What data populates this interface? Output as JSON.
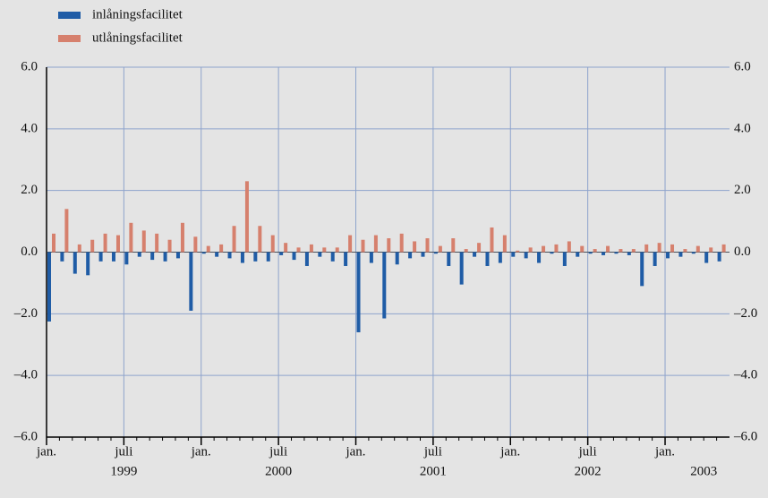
{
  "chart_data": {
    "type": "bar",
    "categories": [
      "jan.",
      null,
      null,
      null,
      null,
      null,
      "juli",
      null,
      null,
      null,
      null,
      null,
      "jan.",
      null,
      null,
      null,
      null,
      null,
      "juli",
      null,
      null,
      null,
      null,
      null,
      "jan.",
      null,
      null,
      null,
      null,
      null,
      "juli",
      null,
      null,
      null,
      null,
      null,
      "jan.",
      null,
      null,
      null,
      null,
      null,
      "juli",
      null,
      null,
      null,
      null,
      null,
      "jan.",
      null,
      null,
      null,
      null
    ],
    "years": [
      null,
      null,
      null,
      null,
      null,
      null,
      "1999",
      null,
      null,
      null,
      null,
      null,
      null,
      null,
      null,
      null,
      null,
      null,
      "2000",
      null,
      null,
      null,
      null,
      null,
      null,
      null,
      null,
      null,
      null,
      null,
      "2001",
      null,
      null,
      null,
      null,
      null,
      null,
      null,
      null,
      null,
      null,
      null,
      "2002",
      null,
      null,
      null,
      null,
      null,
      null,
      null,
      null,
      "2003",
      null
    ],
    "series": [
      {
        "name": "inlåningsfacilitet",
        "color": "#1f5ca6",
        "values": [
          -2.25,
          -0.3,
          -0.7,
          -0.75,
          -0.3,
          -0.3,
          -0.4,
          -0.15,
          -0.25,
          -0.3,
          -0.2,
          -1.9,
          -0.05,
          -0.15,
          -0.2,
          -0.35,
          -0.3,
          -0.3,
          -0.1,
          -0.25,
          -0.45,
          -0.15,
          -0.3,
          -0.45,
          -2.6,
          -0.35,
          -2.15,
          -0.4,
          -0.2,
          -0.15,
          -0.05,
          -0.45,
          -1.05,
          -0.15,
          -0.45,
          -0.35,
          -0.15,
          -0.2,
          -0.35,
          -0.05,
          -0.45,
          -0.15,
          -0.05,
          -0.1,
          -0.05,
          -0.1,
          -1.1,
          -0.45,
          -0.2,
          -0.15,
          -0.05,
          -0.35,
          -0.3
        ]
      },
      {
        "name": "utlåningsfacilitet",
        "color": "#d6806d",
        "values": [
          0.6,
          1.4,
          0.25,
          0.4,
          0.6,
          0.55,
          0.95,
          0.7,
          0.6,
          0.4,
          0.95,
          0.5,
          0.2,
          0.25,
          0.85,
          2.3,
          0.85,
          0.55,
          0.3,
          0.15,
          0.25,
          0.15,
          0.15,
          0.55,
          0.4,
          0.55,
          0.45,
          0.6,
          0.35,
          0.45,
          0.2,
          0.45,
          0.1,
          0.3,
          0.8,
          0.55,
          0.05,
          0.15,
          0.2,
          0.25,
          0.35,
          0.2,
          0.1,
          0.2,
          0.1,
          0.1,
          0.25,
          0.3,
          0.25,
          0.1,
          0.2,
          0.15,
          0.25
        ]
      }
    ],
    "ylim": [
      -6,
      6
    ],
    "yticks": [
      {
        "value": -6,
        "label": "–6.0"
      },
      {
        "value": -4,
        "label": "–4.0"
      },
      {
        "value": -2,
        "label": "–2.0"
      },
      {
        "value": 0,
        "label": "0.0"
      },
      {
        "value": 2,
        "label": "2.0"
      },
      {
        "value": 4,
        "label": "4.0"
      },
      {
        "value": 6,
        "label": "6.0"
      }
    ],
    "grid": true
  }
}
